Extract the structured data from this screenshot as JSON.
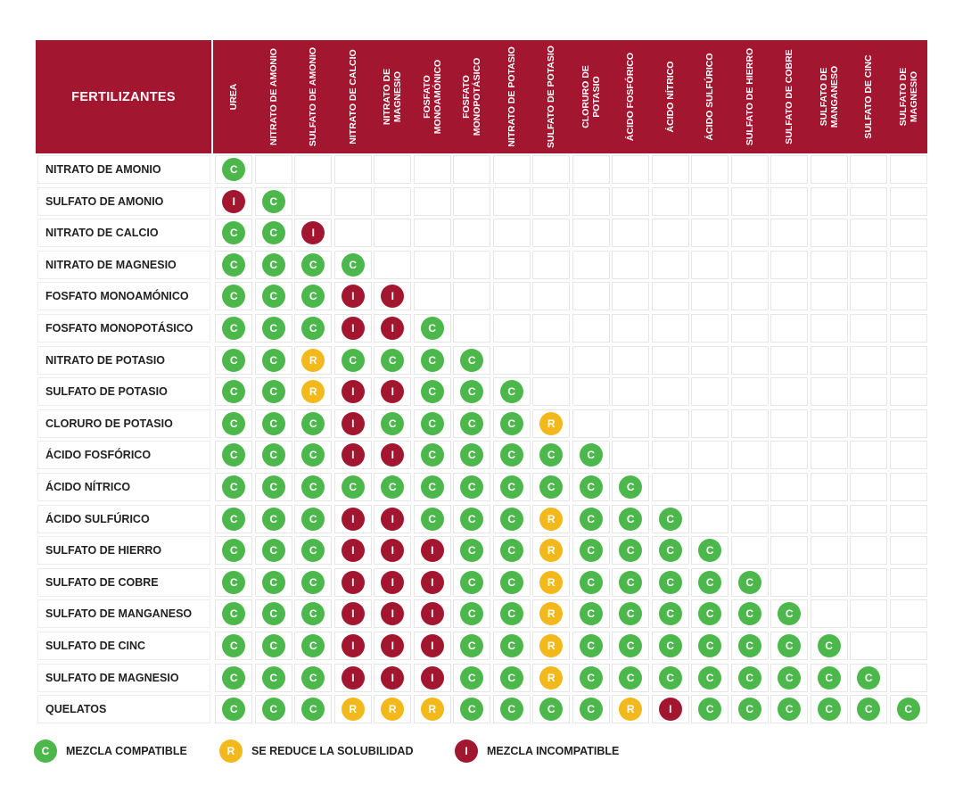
{
  "header_label": "FERTILIZANTES",
  "chart_data": {
    "type": "table",
    "title": "FERTILIZANTES",
    "columns": [
      "UREA",
      "NITRATO DE AMONIO",
      "SULFATO DE AMONIO",
      "NITRATO DE CALCIO",
      "NITRATO DE MAGNESIO",
      "FOSFATO MONOAMÓNICO",
      "FOSFATO MONOPOTÁSICO",
      "NITRATO DE POTASIO",
      "SULFATO DE POTASIO",
      "CLORURO DE POTASIO",
      "ÁCIDO FOSFÓRICO",
      "ÁCIDO NÍTRICO",
      "ÁCIDO SULFÚRICO",
      "SULFATO DE HIERRO",
      "SULFATO DE COBRE",
      "SULFATO DE MANGANESO",
      "SULFATO DE CINC",
      "SULFATO DE MAGNESIO"
    ],
    "rows": [
      {
        "label": "NITRATO DE AMONIO",
        "values": [
          "C"
        ]
      },
      {
        "label": "SULFATO DE AMONIO",
        "values": [
          "I",
          "C"
        ]
      },
      {
        "label": "NITRATO DE CALCIO",
        "values": [
          "C",
          "C",
          "I"
        ]
      },
      {
        "label": "NITRATO DE MAGNESIO",
        "values": [
          "C",
          "C",
          "C",
          "C"
        ]
      },
      {
        "label": "FOSFATO MONOAMÓNICO",
        "values": [
          "C",
          "C",
          "C",
          "I",
          "I"
        ]
      },
      {
        "label": "FOSFATO MONOPOTÁSICO",
        "values": [
          "C",
          "C",
          "C",
          "I",
          "I",
          "C"
        ]
      },
      {
        "label": "NITRATO DE POTASIO",
        "values": [
          "C",
          "C",
          "R",
          "C",
          "C",
          "C",
          "C"
        ]
      },
      {
        "label": "SULFATO DE POTASIO",
        "values": [
          "C",
          "C",
          "R",
          "I",
          "I",
          "C",
          "C",
          "C"
        ]
      },
      {
        "label": "CLORURO DE POTASIO",
        "values": [
          "C",
          "C",
          "C",
          "I",
          "C",
          "C",
          "C",
          "C",
          "R"
        ]
      },
      {
        "label": "ÁCIDO FOSFÓRICO",
        "values": [
          "C",
          "C",
          "C",
          "I",
          "I",
          "C",
          "C",
          "C",
          "C",
          "C"
        ]
      },
      {
        "label": "ÁCIDO NÍTRICO",
        "values": [
          "C",
          "C",
          "C",
          "C",
          "C",
          "C",
          "C",
          "C",
          "C",
          "C",
          "C"
        ]
      },
      {
        "label": "ÁCIDO SULFÚRICO",
        "values": [
          "C",
          "C",
          "C",
          "I",
          "I",
          "C",
          "C",
          "C",
          "R",
          "C",
          "C",
          "C"
        ]
      },
      {
        "label": "SULFATO DE HIERRO",
        "values": [
          "C",
          "C",
          "C",
          "I",
          "I",
          "I",
          "C",
          "C",
          "R",
          "C",
          "C",
          "C",
          "C"
        ]
      },
      {
        "label": "SULFATO DE COBRE",
        "values": [
          "C",
          "C",
          "C",
          "I",
          "I",
          "I",
          "C",
          "C",
          "R",
          "C",
          "C",
          "C",
          "C",
          "C"
        ]
      },
      {
        "label": "SULFATO DE MANGANESO",
        "values": [
          "C",
          "C",
          "C",
          "I",
          "I",
          "I",
          "C",
          "C",
          "R",
          "C",
          "C",
          "C",
          "C",
          "C",
          "C"
        ]
      },
      {
        "label": "SULFATO DE CINC",
        "values": [
          "C",
          "C",
          "C",
          "I",
          "I",
          "I",
          "C",
          "C",
          "R",
          "C",
          "C",
          "C",
          "C",
          "C",
          "C",
          "C"
        ]
      },
      {
        "label": "SULFATO DE MAGNESIO",
        "values": [
          "C",
          "C",
          "C",
          "I",
          "I",
          "I",
          "C",
          "C",
          "R",
          "C",
          "C",
          "C",
          "C",
          "C",
          "C",
          "C",
          "C"
        ]
      },
      {
        "label": "QUELATOS",
        "values": [
          "C",
          "C",
          "C",
          "R",
          "R",
          "R",
          "C",
          "C",
          "C",
          "C",
          "R",
          "I",
          "C",
          "C",
          "C",
          "C",
          "C",
          "C"
        ]
      }
    ],
    "legend": [
      {
        "code": "C",
        "label": "MEZCLA COMPATIBLE"
      },
      {
        "code": "R",
        "label": "SE REDUCE LA SOLUBILIDAD"
      },
      {
        "code": "I",
        "label": "MEZCLA INCOMPATIBLE"
      }
    ],
    "colors": {
      "C": "#4cb84c",
      "R": "#f2b81c",
      "I": "#a3162f",
      "header": "#a3162f"
    }
  }
}
